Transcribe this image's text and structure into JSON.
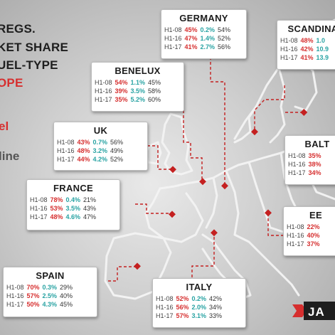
{
  "title": {
    "line1": "REGS.",
    "line2": "KET SHARE",
    "line3": "UEL-TYPE",
    "line4": "OPE"
  },
  "legend": {
    "red": "el",
    "grey": "line"
  },
  "colors": {
    "diesel": "#d62f2f",
    "electric": "#29a3a3",
    "other": "#333333"
  },
  "logo": {
    "text": "JA"
  },
  "countries": {
    "germany": {
      "name": "GERMANY",
      "rows": [
        {
          "period": "H1-08",
          "diesel": "45%",
          "electric": "0.2%",
          "other": "54%"
        },
        {
          "period": "H1-16",
          "diesel": "47%",
          "electric": "1.4%",
          "other": "52%"
        },
        {
          "period": "H1-17",
          "diesel": "41%",
          "electric": "2.7%",
          "other": "56%"
        }
      ]
    },
    "scandinavia": {
      "name": "SCANDINA",
      "rows": [
        {
          "period": "H1-08",
          "diesel": "48%",
          "electric": "1.0",
          "other": ""
        },
        {
          "period": "H1-16",
          "diesel": "42%",
          "electric": "10.9",
          "other": ""
        },
        {
          "period": "H1-17",
          "diesel": "41%",
          "electric": "13.9",
          "other": ""
        }
      ]
    },
    "benelux": {
      "name": "BENELUX",
      "rows": [
        {
          "period": "H1-08",
          "diesel": "54%",
          "electric": "1.1%",
          "other": "45%"
        },
        {
          "period": "H1-16",
          "diesel": "39%",
          "electric": "3.5%",
          "other": "58%"
        },
        {
          "period": "H1-17",
          "diesel": "35%",
          "electric": "5.2%",
          "other": "60%"
        }
      ]
    },
    "uk": {
      "name": "UK",
      "rows": [
        {
          "period": "H1-08",
          "diesel": "43%",
          "electric": "0.7%",
          "other": "56%"
        },
        {
          "period": "H1-16",
          "diesel": "48%",
          "electric": "3.2%",
          "other": "49%"
        },
        {
          "period": "H1-17",
          "diesel": "44%",
          "electric": "4.2%",
          "other": "52%"
        }
      ]
    },
    "baltics": {
      "name": "BALT",
      "rows": [
        {
          "period": "H1-08",
          "diesel": "35%",
          "electric": "",
          "other": ""
        },
        {
          "period": "H1-16",
          "diesel": "38%",
          "electric": "",
          "other": ""
        },
        {
          "period": "H1-17",
          "diesel": "34%",
          "electric": "",
          "other": ""
        }
      ]
    },
    "france": {
      "name": "FRANCE",
      "rows": [
        {
          "period": "H1-08",
          "diesel": "78%",
          "electric": "0.4%",
          "other": "21%"
        },
        {
          "period": "H1-16",
          "diesel": "53%",
          "electric": "3.5%",
          "other": "43%"
        },
        {
          "period": "H1-17",
          "diesel": "48%",
          "electric": "4.6%",
          "other": "47%"
        }
      ]
    },
    "ee": {
      "name": "EE",
      "rows": [
        {
          "period": "H1-08",
          "diesel": "22%",
          "electric": "",
          "other": ""
        },
        {
          "period": "H1-16",
          "diesel": "40%",
          "electric": "",
          "other": ""
        },
        {
          "period": "H1-17",
          "diesel": "37%",
          "electric": "",
          "other": ""
        }
      ]
    },
    "spain": {
      "name": "SPAIN",
      "rows": [
        {
          "period": "H1-08",
          "diesel": "70%",
          "electric": "0.3%",
          "other": "29%"
        },
        {
          "period": "H1-16",
          "diesel": "57%",
          "electric": "2.5%",
          "other": "40%"
        },
        {
          "period": "H1-17",
          "diesel": "50%",
          "electric": "4.3%",
          "other": "45%"
        }
      ]
    },
    "italy": {
      "name": "ITALY",
      "rows": [
        {
          "period": "H1-08",
          "diesel": "52%",
          "electric": "0.2%",
          "other": "42%"
        },
        {
          "period": "H1-16",
          "diesel": "56%",
          "electric": "2.0%",
          "other": "34%"
        },
        {
          "period": "H1-17",
          "diesel": "57%",
          "electric": "3.1%",
          "other": "33%"
        }
      ]
    }
  }
}
